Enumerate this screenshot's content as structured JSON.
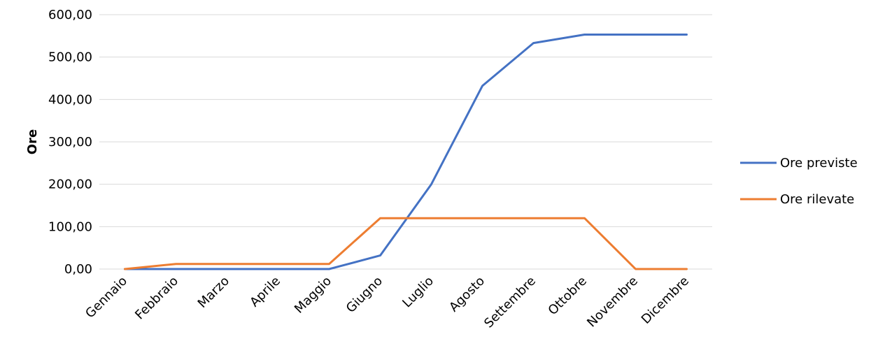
{
  "chart_data": {
    "type": "line",
    "ylabel": "Ore",
    "xlabel": "",
    "ylim": [
      0,
      600
    ],
    "ytick_step": 100,
    "grid": "horizontal",
    "legend_position": "right",
    "categories": [
      "Gennaio",
      "Febbraio",
      "Marzo",
      "Aprile",
      "Maggio",
      "Giugno",
      "Luglio",
      "Agosto",
      "Settembre",
      "Ottobre",
      "Novembre",
      "Dicembre"
    ],
    "series": [
      {
        "name": "Ore previste",
        "color": "#4472C4",
        "values": [
          0,
          0,
          0,
          0,
          0,
          32,
          200,
          432,
          533,
          553,
          553,
          553
        ]
      },
      {
        "name": "Ore rilevate",
        "color": "#ED7D31",
        "values": [
          0,
          12,
          12,
          12,
          12,
          120,
          120,
          120,
          120,
          120,
          0,
          0
        ]
      }
    ]
  }
}
